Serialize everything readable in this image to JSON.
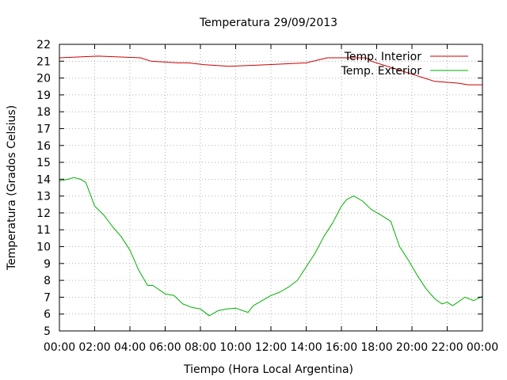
{
  "chart_data": {
    "type": "line",
    "title": "Temperatura 29/09/2013",
    "xlabel": "Tiempo (Hora Local Argentina)",
    "ylabel": "Temperatura (Grados Celsius)",
    "xlim": [
      0,
      24
    ],
    "ylim": [
      5,
      22
    ],
    "grid": true,
    "legend_position": "top-right",
    "x_ticks": [
      "00:00",
      "02:00",
      "04:00",
      "06:00",
      "08:00",
      "10:00",
      "12:00",
      "14:00",
      "16:00",
      "18:00",
      "20:00",
      "22:00",
      "00:00"
    ],
    "y_ticks": [
      "5",
      "6",
      "7",
      "8",
      "9",
      "10",
      "11",
      "12",
      "13",
      "14",
      "15",
      "16",
      "17",
      "18",
      "19",
      "20",
      "21",
      "22"
    ],
    "series": [
      {
        "name": "Temp. Interior",
        "color": "#cc0000",
        "x": [
          0,
          2.2,
          4.6,
          5.2,
          6.7,
          7.3,
          8.2,
          9.6,
          11.9,
          14,
          15.2,
          17.4,
          17.7,
          18.3,
          18.9,
          19.5,
          20.1,
          20.7,
          21.3,
          22.6,
          23.2,
          24
        ],
        "y": [
          21.2,
          21.3,
          21.2,
          21.0,
          20.9,
          20.9,
          20.8,
          20.7,
          20.8,
          20.9,
          21.2,
          21.2,
          21.0,
          20.8,
          20.6,
          20.4,
          20.2,
          20.0,
          19.8,
          19.7,
          19.6,
          19.6
        ]
      },
      {
        "name": "Temp. Exterior",
        "color": "#00b000",
        "x": [
          0,
          0.5,
          0.8,
          1.2,
          1.5,
          2,
          2.5,
          3,
          3.5,
          4,
          4.5,
          5,
          5.3,
          6,
          6.5,
          7,
          7.5,
          8,
          8.5,
          9,
          9.5,
          10,
          10.7,
          11,
          11.5,
          12,
          12.5,
          13,
          13.5,
          14,
          14.5,
          15,
          15.5,
          16,
          16.3,
          16.7,
          17.2,
          17.7,
          18.2,
          18.8,
          19.3,
          19.8,
          20.3,
          20.8,
          21.3,
          21.7,
          22,
          22.3,
          22.6,
          23,
          23.5,
          24
        ],
        "y": [
          13.9,
          14.0,
          14.1,
          14.0,
          13.8,
          12.4,
          11.9,
          11.2,
          10.6,
          9.8,
          8.6,
          7.7,
          7.7,
          7.2,
          7.1,
          6.6,
          6.4,
          6.3,
          5.9,
          6.2,
          6.3,
          6.35,
          6.1,
          6.5,
          6.8,
          7.1,
          7.3,
          7.6,
          8.0,
          8.8,
          9.6,
          10.6,
          11.4,
          12.4,
          12.8,
          13.0,
          12.7,
          12.2,
          11.9,
          11.5,
          10.0,
          9.2,
          8.3,
          7.5,
          6.9,
          6.6,
          6.7,
          6.5,
          6.7,
          7.0,
          6.8,
          7.05
        ]
      }
    ]
  }
}
